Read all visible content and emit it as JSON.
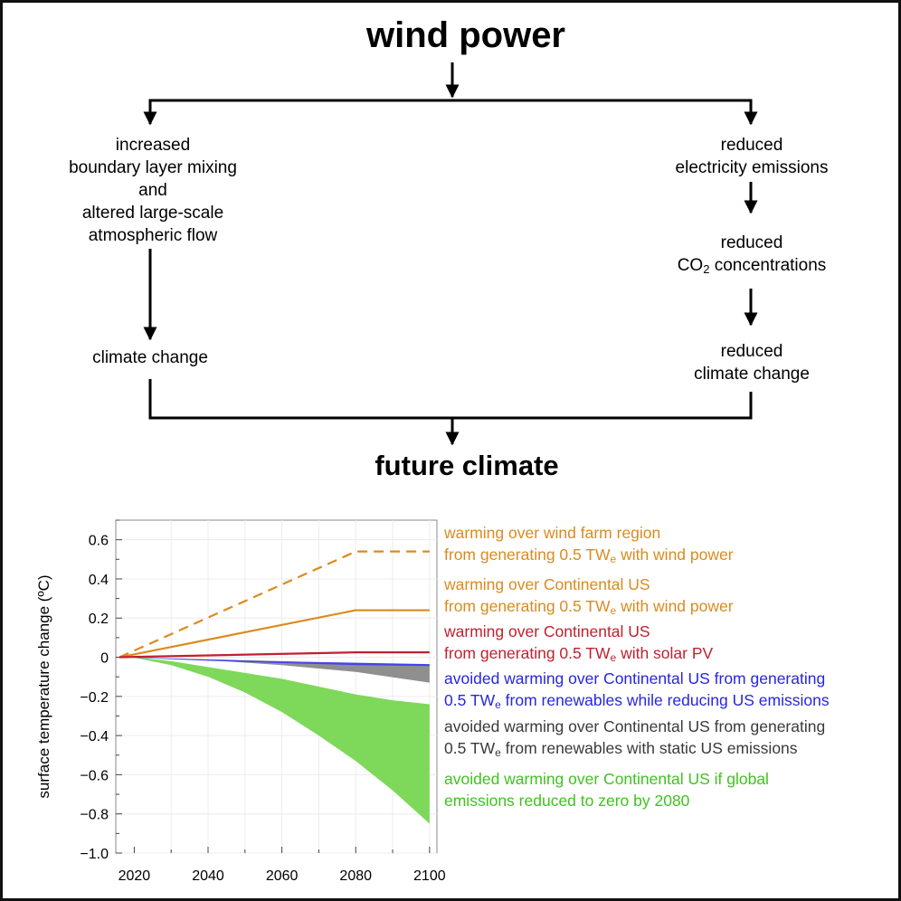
{
  "diagram": {
    "title": "wind power",
    "bottom": "future climate",
    "left_branch": {
      "mechanism": [
        "increased",
        "boundary layer mixing",
        "and",
        "altered large-scale",
        "atmospheric flow"
      ],
      "effect": "climate change"
    },
    "right_branch": {
      "step1": [
        "reduced",
        "electricity emissions"
      ],
      "step2_top": "reduced",
      "step2_co": "CO",
      "step2_sub": "2",
      "step2_rest": " concentrations",
      "step3": [
        "reduced",
        "climate change"
      ]
    }
  },
  "chart_data": {
    "type": "line",
    "ylabel": "surface temperature change (ºC)",
    "xlabel": "",
    "xlim": [
      2015,
      2102
    ],
    "ylim": [
      -1.0,
      0.7
    ],
    "x_ticks": [
      2020,
      2040,
      2060,
      2080,
      2100
    ],
    "y_ticks": [
      0.6,
      0.4,
      0.2,
      0,
      -0.2,
      -0.4,
      -0.6,
      -0.8,
      -1.0
    ],
    "y_tick_labels": [
      "0.6",
      "0.4",
      "0.2",
      "0",
      "−0.2",
      "−0.4",
      "−0.6",
      "−0.8",
      "−1.0"
    ],
    "grid": true,
    "legend": "right",
    "series": [
      {
        "color": "#d98b1f",
        "style": "dashed",
        "x": [
          2016,
          2080,
          2100
        ],
        "y": [
          0,
          0.54,
          0.54
        ]
      },
      {
        "color": "#d98b1f",
        "style": "solid",
        "x": [
          2016,
          2080,
          2100
        ],
        "y": [
          0,
          0.24,
          0.24
        ]
      },
      {
        "color": "#c0212f",
        "style": "solid",
        "x": [
          2016,
          2080,
          2100
        ],
        "y": [
          0,
          0.025,
          0.025
        ]
      }
    ],
    "bands": [
      {
        "color": "#7ed85a",
        "x": [
          2016,
          2020,
          2030,
          2040,
          2050,
          2060,
          2070,
          2080,
          2090,
          2100
        ],
        "upper": [
          0,
          0,
          -0.02,
          -0.05,
          -0.08,
          -0.11,
          -0.15,
          -0.19,
          -0.22,
          -0.24
        ],
        "lower": [
          0,
          -0.002,
          -0.04,
          -0.1,
          -0.18,
          -0.28,
          -0.4,
          -0.53,
          -0.68,
          -0.85
        ]
      },
      {
        "color": "#8f8f8f",
        "x": [
          2016,
          2040,
          2060,
          2080,
          2100
        ],
        "upper": [
          0,
          -0.01,
          -0.02,
          -0.03,
          -0.04
        ],
        "lower": [
          0,
          -0.015,
          -0.04,
          -0.075,
          -0.13
        ]
      },
      {
        "color": "#4444ee",
        "x": [
          2016,
          2040,
          2060,
          2080,
          2100
        ],
        "upper": [
          0,
          -0.012,
          -0.022,
          -0.028,
          -0.035
        ],
        "lower": [
          0,
          -0.018,
          -0.03,
          -0.04,
          -0.045
        ]
      }
    ],
    "annotations": [
      {
        "color": "#d98b1f",
        "line1": "warming over wind farm region",
        "line2_pre": "from generating 0.5 TW",
        "line2_sub": "e",
        "line2_post": " with wind power"
      },
      {
        "color": "#d98b1f",
        "line1": "warming over Continental US",
        "line2_pre": "from generating 0.5 TW",
        "line2_sub": "e",
        "line2_post": " with wind power"
      },
      {
        "color": "#c0212f",
        "line1": "warming over Continental US",
        "line2_pre": "from generating 0.5 TW",
        "line2_sub": "e",
        "line2_post": " with solar PV"
      },
      {
        "color": "#2626e0",
        "line1": "avoided warming over Continental US from generating",
        "line2_pre": "0.5 TW",
        "line2_sub": "e",
        "line2_post": " from renewables while reducing US emissions"
      },
      {
        "color": "#3a3a3a",
        "line1": "avoided warming over Continental US from generating",
        "line2_pre": "0.5 TW",
        "line2_sub": "e",
        "line2_post": " from renewables with static US emissions"
      },
      {
        "color": "#3fc31f",
        "line1": "avoided warming over Continental US if global",
        "line2_pre": "emissions reduced to zero by 2080",
        "line2_sub": "",
        "line2_post": ""
      }
    ]
  }
}
